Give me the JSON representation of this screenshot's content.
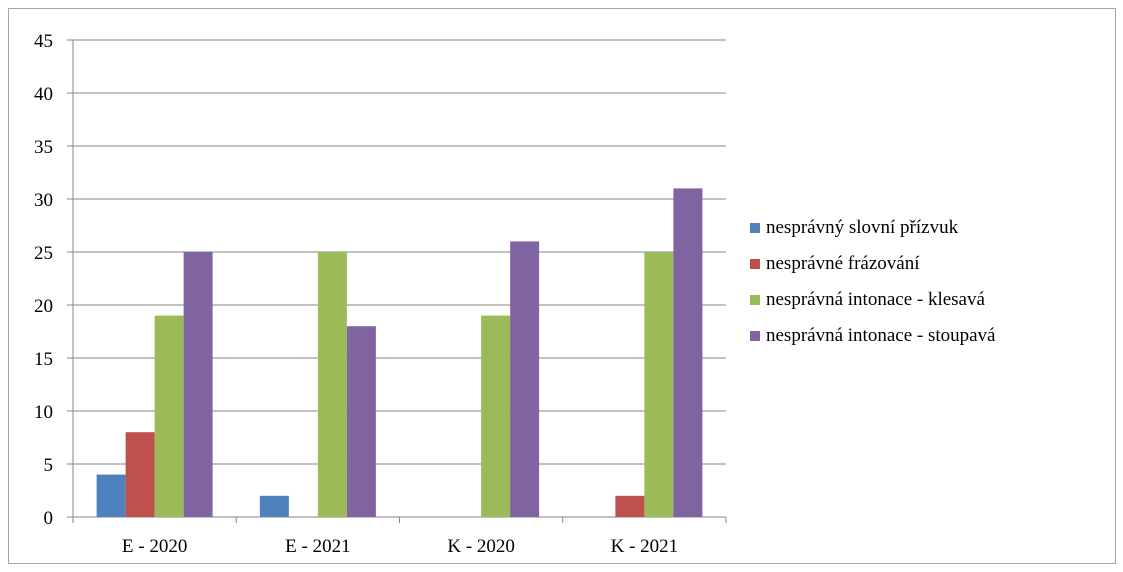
{
  "chart_data": {
    "type": "bar",
    "title": "",
    "xlabel": "",
    "ylabel": "",
    "categories": [
      "E - 2020",
      "E - 2021",
      "K - 2020",
      "K - 2021"
    ],
    "ylim": [
      0,
      45
    ],
    "yticks": [
      0,
      5,
      10,
      15,
      20,
      25,
      30,
      35,
      40,
      45
    ],
    "grid": true,
    "legend_position": "right",
    "series": [
      {
        "name": "nesprávný slovní přízvuk",
        "color": "#4f81bd",
        "values": [
          4,
          2,
          0,
          0
        ]
      },
      {
        "name": "nesprávné frázování",
        "color": "#c0504d",
        "values": [
          8,
          0,
          0,
          2
        ]
      },
      {
        "name": "nesprávná intonace - klesavá",
        "color": "#9bbb59",
        "values": [
          19,
          25,
          19,
          25
        ]
      },
      {
        "name": "nesprávná intonace - stoupavá",
        "color": "#8064a2",
        "values": [
          25,
          18,
          26,
          31
        ]
      }
    ]
  }
}
